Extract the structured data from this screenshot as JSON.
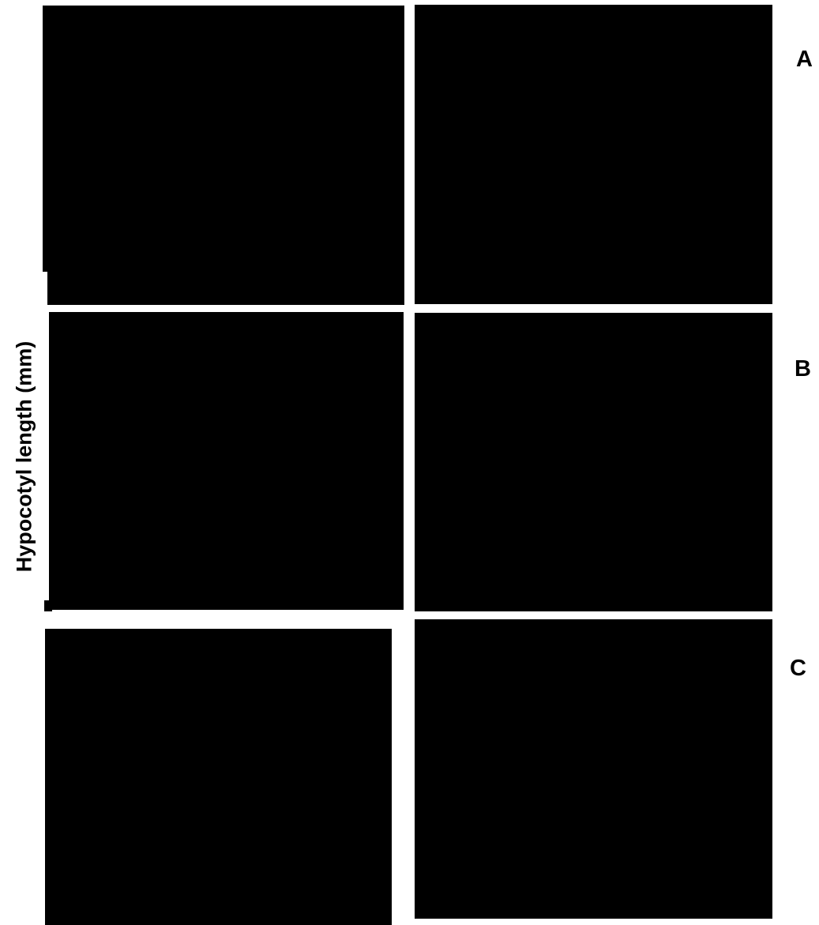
{
  "figure": {
    "y_axis_label": "Hypocotyl length (mm)",
    "row_labels": [
      "A",
      "B",
      "C"
    ]
  }
}
